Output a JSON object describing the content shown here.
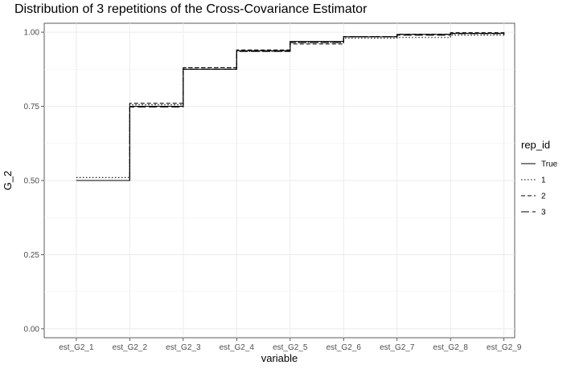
{
  "chart_data": {
    "type": "line",
    "title": "Distribution of 3 repetitions of the Cross-Covariance Estimator",
    "xlabel": "variable",
    "ylabel": "G_2",
    "categories": [
      "est_G2_1",
      "est_G2_2",
      "est_G2_3",
      "est_G2_4",
      "est_G2_5",
      "est_G2_6",
      "est_G2_7",
      "est_G2_8",
      "est_G2_9"
    ],
    "ylim": [
      -0.03,
      1.03
    ],
    "yticks": [
      0.0,
      0.25,
      0.5,
      0.75,
      1.0
    ],
    "ytick_labels": [
      "0.00",
      "0.25",
      "0.50",
      "0.75",
      "1.00"
    ],
    "grid": true,
    "step": true,
    "legend": {
      "title": "rep_id",
      "position": "right"
    },
    "series": [
      {
        "name": "True",
        "dash": "solid",
        "values": [
          0.5,
          0.75,
          0.875,
          0.9375,
          0.96875,
          0.984375,
          0.9921875,
          0.99609375,
          0.998046875
        ]
      },
      {
        "name": "1",
        "dash": "dotted",
        "values": [
          0.51,
          0.755,
          0.88,
          0.935,
          0.965,
          0.98,
          0.982,
          0.99,
          0.99
        ]
      },
      {
        "name": "2",
        "dash": "dashed",
        "values": [
          0.5,
          0.76,
          0.88,
          0.94,
          0.96,
          0.985,
          0.993,
          0.998,
          0.995
        ]
      },
      {
        "name": "3",
        "dash": "longdash",
        "values": [
          0.5,
          0.748,
          0.875,
          0.935,
          0.965,
          0.985,
          0.99,
          0.995,
          0.99
        ]
      }
    ]
  }
}
